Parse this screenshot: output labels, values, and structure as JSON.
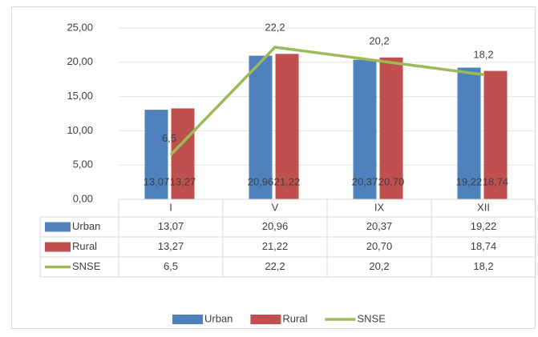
{
  "chart_data": {
    "type": "bar",
    "categories": [
      "I",
      "V",
      "IX",
      "XII"
    ],
    "series": [
      {
        "name": "Urban",
        "color": "#4f81bd",
        "type": "bar",
        "values": [
          13.07,
          20.96,
          20.37,
          19.22
        ],
        "value_labels": [
          "13,07",
          "20,96",
          "20,37",
          "19,22"
        ]
      },
      {
        "name": "Rural",
        "color": "#c0504d",
        "type": "bar",
        "values": [
          13.27,
          21.22,
          20.7,
          18.74
        ],
        "value_labels": [
          "13,27",
          "21,22",
          "20,70",
          "18,74"
        ]
      },
      {
        "name": "SNSE",
        "color": "#9bbb59",
        "type": "line",
        "values": [
          6.5,
          22.2,
          20.2,
          18.2
        ],
        "value_labels": [
          "6,5",
          "22,2",
          "20,2",
          "18,2"
        ]
      }
    ],
    "ylim": [
      0,
      25
    ],
    "yticks": [
      {
        "value": 0,
        "label": "0,00"
      },
      {
        "value": 5,
        "label": "5,00"
      },
      {
        "value": 10,
        "label": "10,00"
      },
      {
        "value": 15,
        "label": "15,00"
      },
      {
        "value": 20,
        "label": "20,00"
      },
      {
        "value": 25,
        "label": "25,00"
      }
    ],
    "grid": true,
    "data_table": true,
    "legend": "bottom"
  }
}
